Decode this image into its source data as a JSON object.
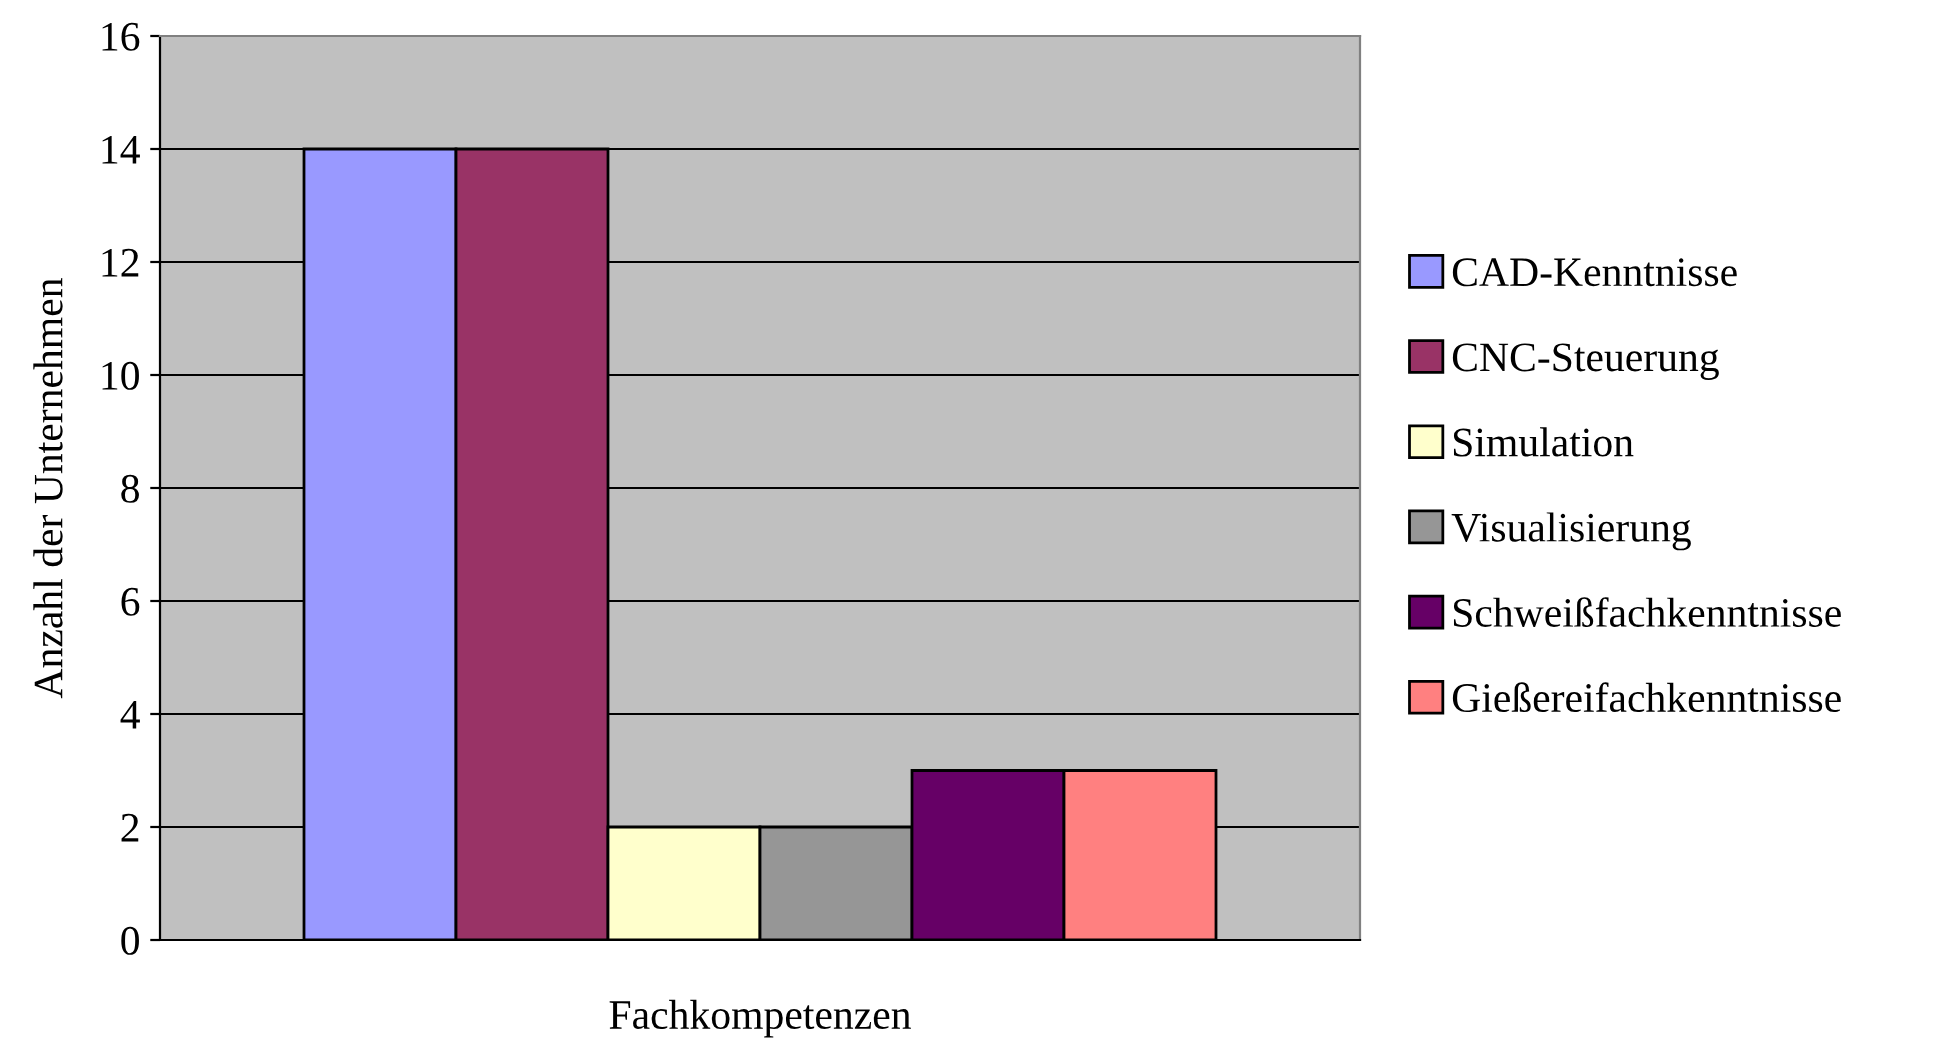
{
  "chart_data": {
    "type": "bar",
    "xlabel": "Fachkompetenzen",
    "ylabel": "Anzahl der Unternehmen",
    "categories": [
      null
    ],
    "series": [
      {
        "name": "CAD-Kenntnisse",
        "color": "#9999ff",
        "values": [
          14
        ]
      },
      {
        "name": "CNC-Steuerung",
        "color": "#993366",
        "values": [
          14
        ]
      },
      {
        "name": "Simulation",
        "color": "#ffffcc",
        "values": [
          2
        ]
      },
      {
        "name": "Visualisierung",
        "color": "#969696",
        "values": [
          2
        ]
      },
      {
        "name": "Schweißfachkenntnisse",
        "color": "#660066",
        "values": [
          3
        ]
      },
      {
        "name": "Gießereifachkenntnisse",
        "color": "#ff8080",
        "values": [
          3
        ]
      }
    ],
    "ylim": [
      0,
      16
    ],
    "yticks": [
      0,
      2,
      4,
      6,
      8,
      10,
      12,
      14,
      16
    ],
    "grid": "y",
    "legend": "right"
  }
}
